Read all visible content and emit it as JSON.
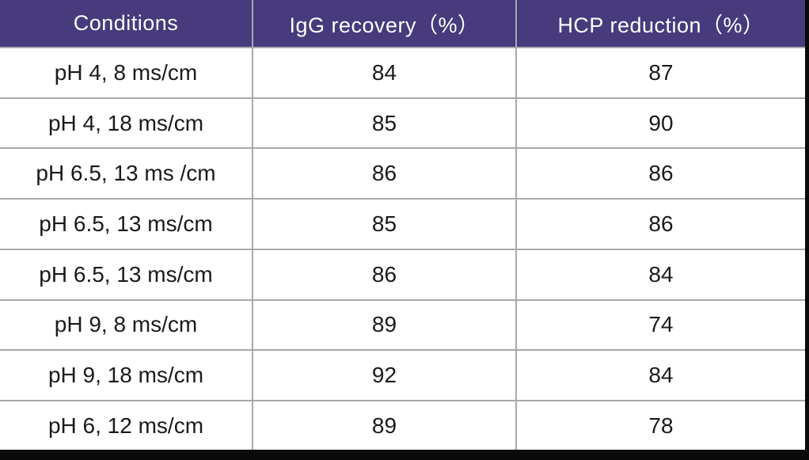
{
  "colors": {
    "header_bg": "#473a7d",
    "header_text": "#ffffff",
    "body_bg": "#ffffff",
    "body_text": "#1a1a1a",
    "grid_line": "#a9a9a9",
    "frame_bar": "#0a0a0a"
  },
  "table": {
    "columns": [
      "Conditions",
      "IgG recovery（%）",
      "HCP reduction（%）"
    ],
    "rows": [
      [
        "pH 4, 8 ms/cm",
        "84",
        "87"
      ],
      [
        "pH 4, 18 ms/cm",
        "85",
        "90"
      ],
      [
        "pH 6.5, 13 ms /cm",
        "86",
        "86"
      ],
      [
        "pH 6.5, 13 ms/cm",
        "85",
        "86"
      ],
      [
        "pH 6.5, 13 ms/cm",
        "86",
        "84"
      ],
      [
        "pH 9, 8 ms/cm",
        "89",
        "74"
      ],
      [
        "pH 9, 18 ms/cm",
        "92",
        "84"
      ],
      [
        "pH 6, 12 ms/cm",
        "89",
        "78"
      ]
    ]
  },
  "chart_data": {
    "type": "table",
    "title": "",
    "columns": [
      "Conditions",
      "IgG recovery（%）",
      "HCP reduction（%）"
    ],
    "categories": [
      "pH 4, 8 ms/cm",
      "pH 4, 18 ms/cm",
      "pH 6.5, 13 ms /cm",
      "pH 6.5, 13 ms/cm",
      "pH 6.5, 13 ms/cm",
      "pH 9, 8 ms/cm",
      "pH 9, 18 ms/cm",
      "pH 6, 12 ms/cm"
    ],
    "series": [
      {
        "name": "IgG recovery（%）",
        "values": [
          84,
          85,
          86,
          85,
          86,
          89,
          92,
          89
        ]
      },
      {
        "name": "HCP reduction（%）",
        "values": [
          87,
          90,
          86,
          86,
          84,
          74,
          84,
          78
        ]
      }
    ]
  }
}
